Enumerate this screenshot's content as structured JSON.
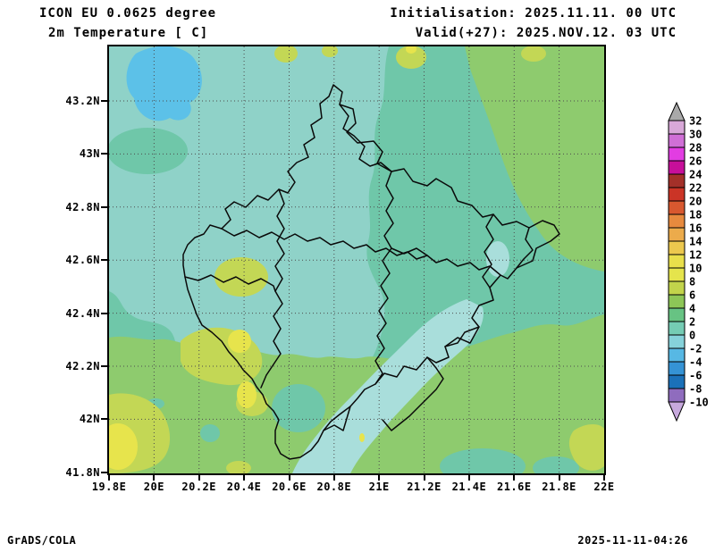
{
  "header": {
    "model": "ICON EU 0.0625 degree",
    "variable": "2m Temperature [ C]",
    "init_line": "Initialisation: 2025.11.11. 00 UTC",
    "valid_line": "Valid(+27): 2025.NOV.12. 03 UTC"
  },
  "footer": {
    "left": "GrADS/COLA",
    "right": "2025-11-11-04:26"
  },
  "axes": {
    "lat_labels": [
      "43.2N",
      "43N",
      "42.8N",
      "42.6N",
      "42.4N",
      "42.2N",
      "42N",
      "41.8N"
    ],
    "lon_labels": [
      "19.8E",
      "20E",
      "20.2E",
      "20.4E",
      "20.6E",
      "20.8E",
      "21E",
      "21.2E",
      "21.4E",
      "21.6E",
      "21.8E",
      "22E"
    ]
  },
  "colorbar": {
    "unit": "C",
    "labels": [
      "32",
      "30",
      "28",
      "26",
      "24",
      "22",
      "20",
      "18",
      "16",
      "14",
      "12",
      "10",
      "8",
      "6",
      "4",
      "2",
      "0",
      "-2",
      "-4",
      "-6",
      "-8",
      "-10"
    ],
    "segment_colors": [
      "#d8a8d8",
      "#d06fd6",
      "#e23de2",
      "#c70f9a",
      "#a33029",
      "#cb3426",
      "#d8582f",
      "#e78a3e",
      "#ecab4b",
      "#ecc84e",
      "#e9df4b",
      "#e5e44c",
      "#c2d44b",
      "#8dc657",
      "#67c383",
      "#75ccb4",
      "#86d2da",
      "#57b8e4",
      "#3593d5",
      "#1b71b9",
      "#8f6cbe"
    ],
    "top_arrow_color": "#a9a9a9",
    "bottom_arrow_color": "#c7a9dd"
  },
  "map_colors": {
    "teal": "#6fc7a9",
    "cyan": "#8fd2c8",
    "green": "#8ecb6e",
    "yellow_green": "#c3d755",
    "yellow": "#e7e44c",
    "sky_blue": "#5cc1e8",
    "pale_cyan": "#a9dedb"
  },
  "map": {
    "border_color": "#0a0a0a",
    "grid_color": "#4d4d4d",
    "region": "Kosovo"
  }
}
